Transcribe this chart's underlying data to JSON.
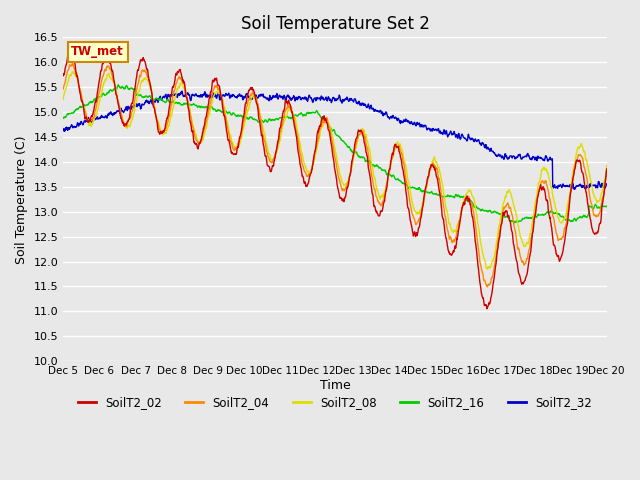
{
  "title": "Soil Temperature Set 2",
  "xlabel": "Time",
  "ylabel": "Soil Temperature (C)",
  "ylim": [
    10.0,
    16.5
  ],
  "yticks": [
    10.0,
    10.5,
    11.0,
    11.5,
    12.0,
    12.5,
    13.0,
    13.5,
    14.0,
    14.5,
    15.0,
    15.5,
    16.0,
    16.5
  ],
  "plot_bg_color": "#e8e8e8",
  "grid_color": "#ffffff",
  "series": {
    "SoilT2_02": {
      "color": "#cc0000"
    },
    "SoilT2_04": {
      "color": "#ff8800"
    },
    "SoilT2_08": {
      "color": "#dddd00"
    },
    "SoilT2_16": {
      "color": "#00cc00"
    },
    "SoilT2_32": {
      "color": "#0000cc"
    }
  },
  "legend_box": {
    "text": "TW_met",
    "facecolor": "#ffffcc",
    "edgecolor": "#cc8800",
    "textcolor": "#cc0000"
  },
  "xticklabels": [
    "Dec 5",
    "Dec 6",
    "Dec 7",
    "Dec 8",
    "Dec 9",
    "Dec 10",
    "Dec 11",
    "Dec 12",
    "Dec 13",
    "Dec 14",
    "Dec 15",
    "Dec 16",
    "Dec 17",
    "Dec 18",
    "Dec 19",
    "Dec 20"
  ]
}
